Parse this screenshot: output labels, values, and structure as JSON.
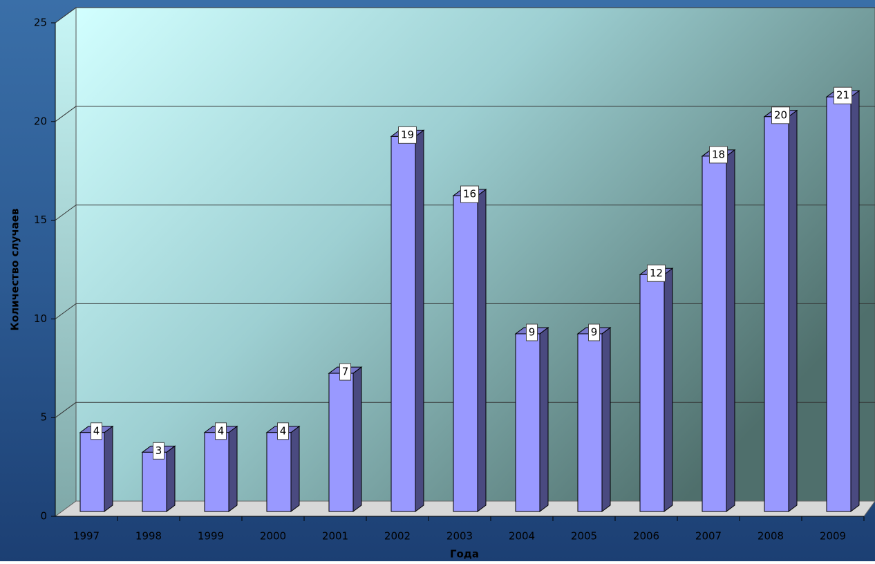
{
  "chart_data": {
    "type": "bar3d",
    "ylabel": "Количество случаев",
    "xlabel": "Года",
    "categories": [
      "1997",
      "1998",
      "1999",
      "2000",
      "2001",
      "2002",
      "2003",
      "2004",
      "2005",
      "2006",
      "2007",
      "2008",
      "2009"
    ],
    "values": [
      4,
      3,
      4,
      4,
      7,
      19,
      16,
      9,
      9,
      12,
      18,
      20,
      21
    ],
    "color": "#9999ff",
    "ylim": [
      0,
      25
    ],
    "yticks": [
      0,
      5,
      10,
      15,
      20,
      25
    ],
    "grid": true
  }
}
